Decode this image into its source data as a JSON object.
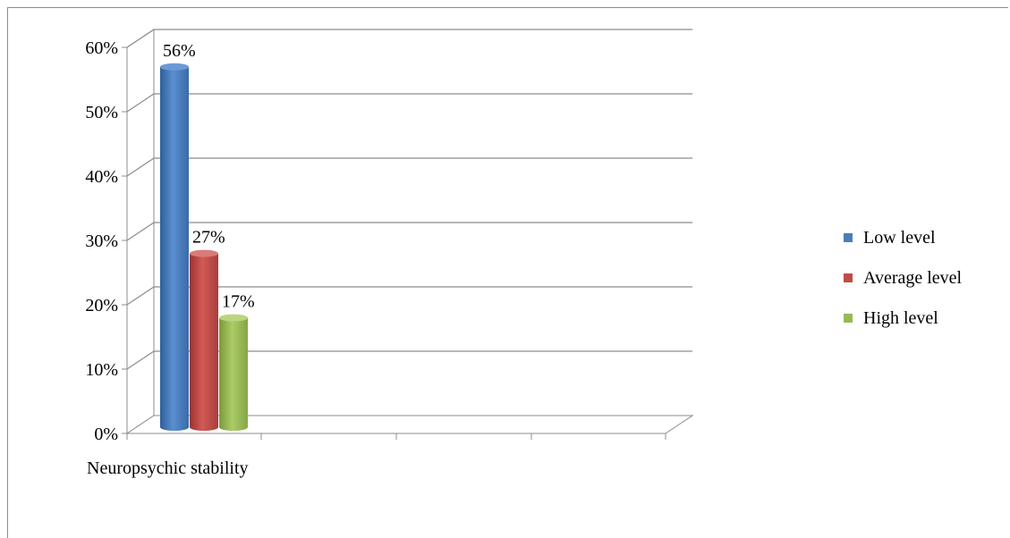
{
  "chart_data": {
    "type": "bar",
    "title": "",
    "xlabel": "",
    "ylabel": "",
    "categories": [
      "Neuropsychic stability"
    ],
    "series": [
      {
        "name": "Low level",
        "values": [
          56
        ],
        "label": "56%",
        "color": "#4a7ebb"
      },
      {
        "name": "Average level",
        "values": [
          27
        ],
        "label": "27%",
        "color": "#be4b48"
      },
      {
        "name": "High level",
        "values": [
          17
        ],
        "label": "17%",
        "color": "#98b954"
      }
    ],
    "ylim": [
      0,
      60
    ],
    "yticks": [
      "0%",
      "10%",
      "20%",
      "30%",
      "40%",
      "50%",
      "60%"
    ],
    "grid": true,
    "legend_position": "right"
  }
}
